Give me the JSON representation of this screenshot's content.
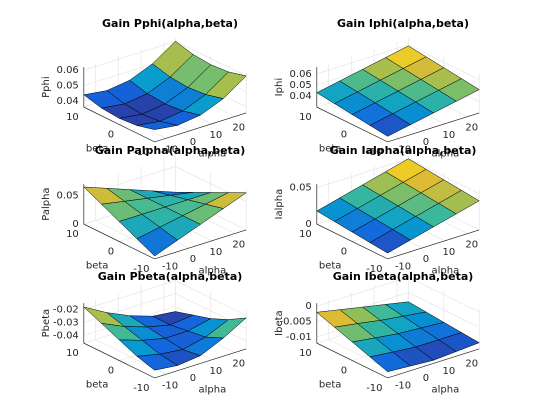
{
  "chart_data": [
    {
      "type": "surface",
      "title": "Gain Pphi(alpha,beta)",
      "xlabel": "alpha",
      "ylabel": "beta",
      "zlabel": "Pphi",
      "x": [
        -15,
        -5,
        5,
        15,
        25
      ],
      "y": [
        -10,
        -5,
        0,
        5,
        10
      ],
      "z": [
        [
          0.044,
          0.042,
          0.044,
          0.05,
          0.06
        ],
        [
          0.041,
          0.039,
          0.041,
          0.047,
          0.057
        ],
        [
          0.04,
          0.038,
          0.04,
          0.046,
          0.056
        ],
        [
          0.041,
          0.039,
          0.041,
          0.047,
          0.057
        ],
        [
          0.044,
          0.042,
          0.044,
          0.05,
          0.06
        ]
      ],
      "xlim": [
        -15,
        25
      ],
      "ylim": [
        -10,
        10
      ],
      "zlim": [
        0.036,
        0.062
      ],
      "xticks": [
        -10,
        0,
        10,
        20
      ],
      "yticks": [
        -10,
        0,
        10
      ],
      "zticks": [
        0.04,
        0.05,
        0.06
      ]
    },
    {
      "type": "surface",
      "title": "Gain Iphi(alpha,beta)",
      "xlabel": "alpha",
      "ylabel": "beta",
      "zlabel": "Iphi",
      "x": [
        -15,
        -5,
        5,
        15,
        25
      ],
      "y": [
        -10,
        -5,
        0,
        5,
        10
      ],
      "z": [
        [
          0.035,
          0.039,
          0.043,
          0.047,
          0.051
        ],
        [
          0.037,
          0.041,
          0.045,
          0.049,
          0.053
        ],
        [
          0.039,
          0.043,
          0.047,
          0.051,
          0.055
        ],
        [
          0.041,
          0.045,
          0.049,
          0.053,
          0.057
        ],
        [
          0.043,
          0.047,
          0.051,
          0.055,
          0.059
        ]
      ],
      "xlim": [
        -15,
        25
      ],
      "ylim": [
        -10,
        10
      ],
      "zlim": [
        0.03,
        0.066
      ],
      "xticks": [
        -10,
        0,
        10,
        20
      ],
      "yticks": [
        -10,
        0,
        10
      ],
      "zticks": [
        0.04,
        0.05,
        0.06
      ]
    },
    {
      "type": "surface",
      "title": "Gain Palpha(alpha,beta)",
      "xlabel": "alpha",
      "ylabel": "beta",
      "zlabel": "Palpha",
      "x": [
        -15,
        -5,
        5,
        15,
        25
      ],
      "y": [
        -10,
        -5,
        0,
        5,
        10
      ],
      "z": [
        [
          0.005,
          0.02,
          0.035,
          0.05,
          0.065
        ],
        [
          0.02,
          0.0275,
          0.035,
          0.0425,
          0.05
        ],
        [
          0.035,
          0.035,
          0.035,
          0.035,
          0.035
        ],
        [
          0.05,
          0.0425,
          0.035,
          0.0275,
          0.02
        ],
        [
          0.065,
          0.05,
          0.035,
          0.02,
          0.005
        ]
      ],
      "xlim": [
        -15,
        25
      ],
      "ylim": [
        -10,
        10
      ],
      "zlim": [
        0,
        0.07
      ],
      "xticks": [
        -10,
        0,
        10,
        20
      ],
      "yticks": [
        -10,
        0,
        10
      ],
      "zticks": [
        0,
        0.05
      ]
    },
    {
      "type": "surface",
      "title": "Gain Ialpha(alpha,beta)",
      "xlabel": "alpha",
      "ylabel": "beta",
      "zlabel": "Ialpha",
      "x": [
        -15,
        -5,
        5,
        15,
        25
      ],
      "y": [
        -10,
        -5,
        0,
        5,
        10
      ],
      "z": [
        [
          0.008,
          0.016,
          0.024,
          0.032,
          0.04
        ],
        [
          0.0105,
          0.0185,
          0.0265,
          0.0345,
          0.0425
        ],
        [
          0.013,
          0.021,
          0.029,
          0.037,
          0.045
        ],
        [
          0.0155,
          0.0235,
          0.0315,
          0.0395,
          0.0475
        ],
        [
          0.018,
          0.026,
          0.034,
          0.042,
          0.05
        ]
      ],
      "xlim": [
        -15,
        25
      ],
      "ylim": [
        -10,
        10
      ],
      "zlim": [
        0,
        0.055
      ],
      "xticks": [
        -10,
        0,
        10,
        20
      ],
      "yticks": [
        -10,
        0,
        10
      ],
      "zticks": [
        0,
        0.05
      ]
    },
    {
      "type": "surface",
      "title": "Gain Pbeta(alpha,beta)",
      "xlabel": "alpha",
      "ylabel": "beta",
      "zlabel": "Pbeta",
      "x": [
        -15,
        -5,
        5,
        15,
        25
      ],
      "y": [
        -10,
        -5,
        0,
        5,
        10
      ],
      "z": [
        [
          -0.04,
          -0.042,
          -0.04,
          -0.032,
          -0.022
        ],
        [
          -0.036,
          -0.04,
          -0.042,
          -0.038,
          -0.03
        ],
        [
          -0.03,
          -0.036,
          -0.04,
          -0.04,
          -0.036
        ],
        [
          -0.024,
          -0.032,
          -0.038,
          -0.042,
          -0.04
        ],
        [
          -0.018,
          -0.028,
          -0.036,
          -0.042,
          -0.044
        ]
      ],
      "xlim": [
        -15,
        25
      ],
      "ylim": [
        -10,
        10
      ],
      "zlim": [
        -0.046,
        -0.015
      ],
      "xticks": [
        -10,
        0,
        10,
        20
      ],
      "yticks": [
        -10,
        0,
        10
      ],
      "zticks": [
        -0.04,
        -0.03,
        -0.02
      ]
    },
    {
      "type": "surface",
      "title": "Gain Ibeta(alpha,beta)",
      "xlabel": "alpha",
      "ylabel": "beta",
      "zlabel": "Ibeta",
      "x": [
        -15,
        -5,
        5,
        15,
        25
      ],
      "y": [
        -10,
        -5,
        0,
        5,
        10
      ],
      "z": [
        [
          -0.01,
          -0.0105,
          -0.011,
          -0.0105,
          -0.01
        ],
        [
          -0.008,
          -0.0088,
          -0.0095,
          -0.0095,
          -0.0095
        ],
        [
          -0.006,
          -0.007,
          -0.008,
          -0.0085,
          -0.009
        ],
        [
          -0.004,
          -0.0052,
          -0.0065,
          -0.0075,
          -0.0085
        ],
        [
          -0.002,
          -0.0035,
          -0.005,
          -0.0065,
          -0.008
        ]
      ],
      "xlim": [
        -15,
        25
      ],
      "ylim": [
        -10,
        10
      ],
      "zlim": [
        -0.012,
        0.001
      ],
      "xticks": [
        -10,
        0,
        10,
        20
      ],
      "yticks": [
        -10,
        0,
        10
      ],
      "zticks": [
        -0.01,
        -0.005,
        0
      ]
    }
  ]
}
